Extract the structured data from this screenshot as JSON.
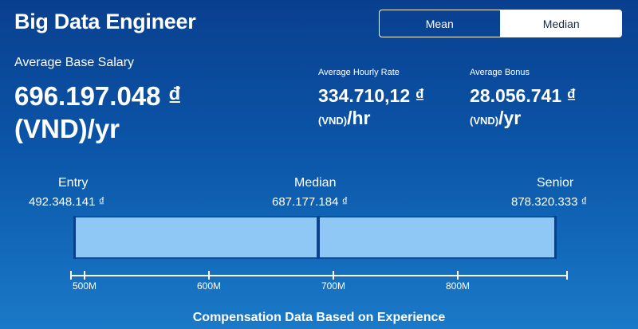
{
  "header": {
    "title": "Big Data Engineer"
  },
  "toggle": {
    "mean_label": "Mean",
    "median_label": "Median",
    "selected": "Median"
  },
  "base": {
    "label": "Average Base Salary",
    "amount": "696.197.048 ₫",
    "unit": "(VND)/yr"
  },
  "hourly": {
    "label": "Average Hourly Rate",
    "amount": "334.710,12 ₫",
    "unit_cur": "(VND)",
    "unit_per": "/hr"
  },
  "bonus": {
    "label": "Average Bonus",
    "amount": "28.056.741 ₫",
    "unit_cur": "(VND)",
    "unit_per": "/yr"
  },
  "tiers": {
    "entry": {
      "label": "Entry",
      "value": "492.348.141 ₫"
    },
    "median": {
      "label": "Median",
      "value": "687.177.184 ₫"
    },
    "senior": {
      "label": "Senior",
      "value": "878.320.333 ₫"
    }
  },
  "axis": {
    "ticks": [
      "500M",
      "600M",
      "700M",
      "800M"
    ]
  },
  "footer": {
    "caption": "Compensation Data Based on Experience"
  }
}
